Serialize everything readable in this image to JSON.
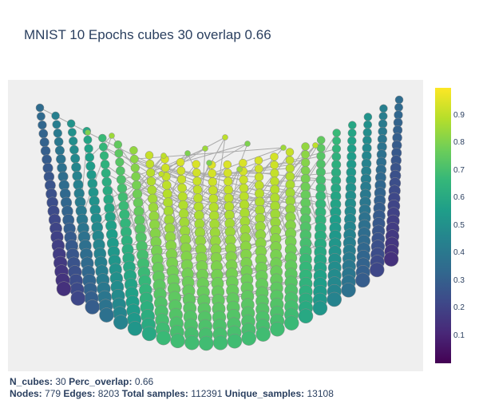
{
  "chart_data": {
    "type": "scatter",
    "title": "MNIST 10 Epochs cubes 30 overlap 0.66",
    "colorscale": "Viridis",
    "color_range": [
      0,
      1
    ],
    "colorbar_ticks": [
      "0.1",
      "0.2",
      "0.3",
      "0.4",
      "0.5",
      "0.6",
      "0.7",
      "0.8",
      "0.9"
    ],
    "edge_color": "#aaaaaa",
    "background": "#efefef"
  },
  "info": {
    "line1": [
      {
        "label": "N_cubes:",
        "value": "30"
      },
      {
        "label": "Perc_overlap:",
        "value": "0.66"
      }
    ],
    "line2": [
      {
        "label": "Nodes:",
        "value": "779"
      },
      {
        "label": "Edges:",
        "value": "8203"
      },
      {
        "label": "Total samples:",
        "value": "112391"
      },
      {
        "label": "Unique_samples:",
        "value": "13108"
      }
    ]
  }
}
